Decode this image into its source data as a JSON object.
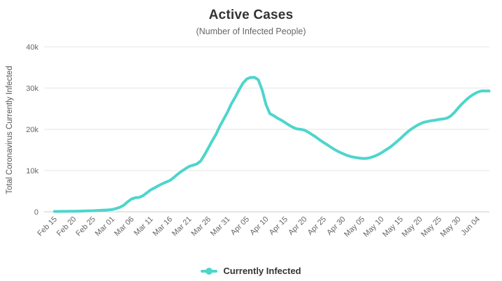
{
  "chart_data": {
    "type": "line",
    "title": "Active Cases",
    "subtitle": "(Number of Infected People)",
    "ylabel": "Total Coronavirus Currently Infected",
    "xlabel": "",
    "ylim": [
      0,
      40000
    ],
    "y_tick_values": [
      0,
      10000,
      20000,
      30000,
      40000
    ],
    "y_tick_labels": [
      "0",
      "10k",
      "20k",
      "30k",
      "40k"
    ],
    "x_tick_every_days": 5,
    "x_tick_labels": [
      "Feb 15",
      "Feb 20",
      "Feb 25",
      "Mar 01",
      "Mar 06",
      "Mar 11",
      "Mar 16",
      "Mar 21",
      "Mar 26",
      "Mar 31",
      "Apr 05",
      "Apr 10",
      "Apr 15",
      "Apr 20",
      "Apr 25",
      "Apr 30",
      "May 05",
      "May 10",
      "May 15",
      "May 20",
      "May 25",
      "May 30",
      "Jun 04"
    ],
    "grid": "horizontal",
    "legend_position": "bottom",
    "dates": [
      "Feb 15",
      "Feb 16",
      "Feb 17",
      "Feb 18",
      "Feb 19",
      "Feb 20",
      "Feb 21",
      "Feb 22",
      "Feb 23",
      "Feb 24",
      "Feb 25",
      "Feb 26",
      "Feb 27",
      "Feb 28",
      "Feb 29",
      "Mar 01",
      "Mar 02",
      "Mar 03",
      "Mar 04",
      "Mar 05",
      "Mar 06",
      "Mar 07",
      "Mar 08",
      "Mar 09",
      "Mar 10",
      "Mar 11",
      "Mar 12",
      "Mar 13",
      "Mar 14",
      "Mar 15",
      "Mar 16",
      "Mar 17",
      "Mar 18",
      "Mar 19",
      "Mar 20",
      "Mar 21",
      "Mar 22",
      "Mar 23",
      "Mar 24",
      "Mar 25",
      "Mar 26",
      "Mar 27",
      "Mar 28",
      "Mar 29",
      "Mar 30",
      "Mar 31",
      "Apr 01",
      "Apr 02",
      "Apr 03",
      "Apr 04",
      "Apr 05",
      "Apr 06",
      "Apr 07",
      "Apr 08",
      "Apr 09",
      "Apr 10",
      "Apr 11",
      "Apr 12",
      "Apr 13",
      "Apr 14",
      "Apr 15",
      "Apr 16",
      "Apr 17",
      "Apr 18",
      "Apr 19",
      "Apr 20",
      "Apr 21",
      "Apr 22",
      "Apr 23",
      "Apr 24",
      "Apr 25",
      "Apr 26",
      "Apr 27",
      "Apr 28",
      "Apr 29",
      "Apr 30",
      "May 01",
      "May 02",
      "May 03",
      "May 04",
      "May 05",
      "May 06",
      "May 07",
      "May 08",
      "May 09",
      "May 10",
      "May 11",
      "May 12",
      "May 13",
      "May 14",
      "May 15",
      "May 16",
      "May 17",
      "May 18",
      "May 19",
      "May 20",
      "May 21",
      "May 22",
      "May 23",
      "May 24",
      "May 25",
      "May 26",
      "May 27",
      "May 28",
      "May 29",
      "May 30",
      "May 31",
      "Jun 01",
      "Jun 02",
      "Jun 03",
      "Jun 04",
      "Jun 05",
      "Jun 06",
      "Jun 07"
    ],
    "series": [
      {
        "name": "Currently Infected",
        "color": "#4ed5cc",
        "values": [
          80,
          90,
          100,
          110,
          120,
          130,
          150,
          170,
          200,
          230,
          260,
          300,
          350,
          400,
          450,
          550,
          800,
          1100,
          1600,
          2400,
          3100,
          3400,
          3500,
          3900,
          4600,
          5300,
          5800,
          6300,
          6800,
          7200,
          7600,
          8300,
          9100,
          9800,
          10400,
          11000,
          11300,
          11600,
          12300,
          13800,
          15500,
          17200,
          18800,
          20800,
          22500,
          24200,
          26200,
          27800,
          29600,
          31200,
          32200,
          32600,
          32600,
          32000,
          29500,
          26000,
          23800,
          23300,
          22700,
          22200,
          21600,
          21000,
          20500,
          20100,
          20000,
          19800,
          19300,
          18700,
          18100,
          17400,
          16800,
          16200,
          15600,
          15000,
          14500,
          14100,
          13700,
          13400,
          13200,
          13050,
          12950,
          12950,
          13100,
          13400,
          13800,
          14300,
          14900,
          15500,
          16200,
          17000,
          17800,
          18700,
          19500,
          20200,
          20800,
          21300,
          21700,
          21900,
          22100,
          22200,
          22400,
          22500,
          22700,
          23200,
          24100,
          25200,
          26200,
          27100,
          27900,
          28500,
          29000,
          29300,
          29300,
          29300
        ]
      }
    ]
  },
  "colors": {
    "accent": "#4ed5cc",
    "grid": "#e6e6e6",
    "axis_line": "#cccccc",
    "title_text": "#333333",
    "subtitle_text": "#666666",
    "tick_text": "#666666",
    "axis_title_text": "#555555",
    "legend_text": "#333333",
    "background": "#ffffff"
  }
}
